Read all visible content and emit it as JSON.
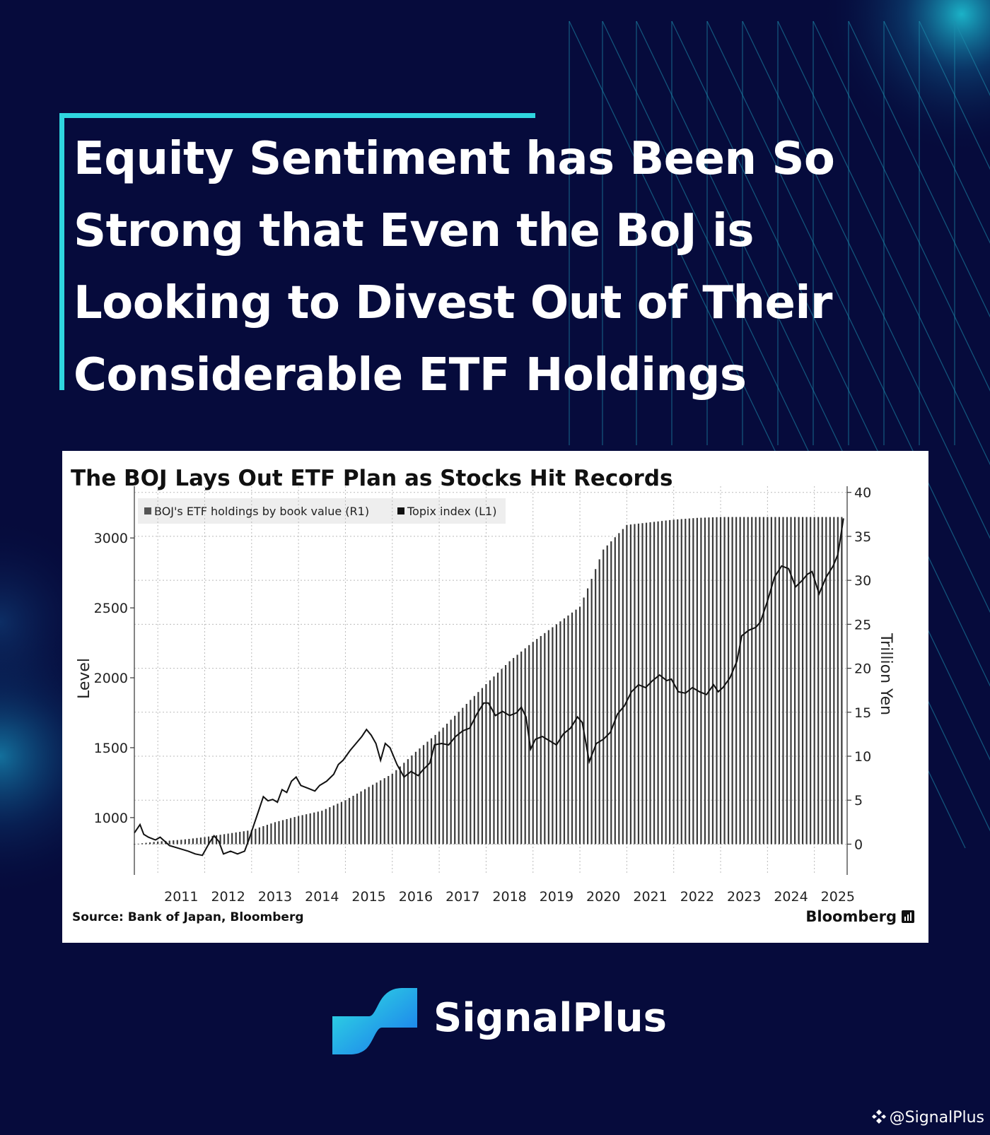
{
  "headline": "Equity Sentiment has Been So Strong that Even the BoJ is Looking to Divest Out of Their Considerable ETF Holdings",
  "brand": {
    "name": "SignalPlus",
    "logo_icon": "signalplus-wave-logo-icon"
  },
  "watermark": {
    "icon": "binance-diamond-icon",
    "text": "@SignalPlus"
  },
  "colors": {
    "background": "#060b3c",
    "accent": "#2fd6df",
    "logo_gradient_start": "#31e3e0",
    "logo_gradient_end": "#1a73ee"
  },
  "chart_data": {
    "type": "bar+line",
    "title": "The BOJ Lays Out ETF Plan as Stocks Hit Records",
    "legend": [
      {
        "label": "BOJ's ETF holdings by book value (R1)"
      },
      {
        "label": "Topix index (L1)"
      }
    ],
    "legend_position": "top-left",
    "ylabel_left": "Level",
    "ylabel_right": "Trillion Yen",
    "ylim_left": [
      590,
      3370
    ],
    "yticks_left": [
      "1000",
      "1500",
      "2000",
      "2500",
      "3000"
    ],
    "ylim_right": [
      -3.5,
      40.7
    ],
    "yticks_right": [
      "0",
      "5",
      "10",
      "15",
      "20",
      "25",
      "30",
      "35",
      "40"
    ],
    "x_tick_labels": [
      "2011",
      "2012",
      "2013",
      "2014",
      "2015",
      "2016",
      "2017",
      "2018",
      "2019",
      "2020",
      "2021",
      "2022",
      "2023",
      "2024",
      "2025"
    ],
    "xlim": [
      2010.5,
      2026.0
    ],
    "grid": true,
    "source": "Source: Bank of Japan, Bloomberg",
    "brand_mark": "Bloomberg",
    "series": [
      {
        "name": "BOJ's ETF holdings by book value (R1)",
        "kind": "bar",
        "points": [
          [
            2010.5,
            0.0
          ],
          [
            2011.0,
            0.3
          ],
          [
            2011.5,
            0.5
          ],
          [
            2012.0,
            0.8
          ],
          [
            2012.5,
            1.2
          ],
          [
            2013.0,
            1.6
          ],
          [
            2013.5,
            2.5
          ],
          [
            2014.0,
            3.2
          ],
          [
            2014.5,
            3.8
          ],
          [
            2015.0,
            5.0
          ],
          [
            2015.5,
            6.5
          ],
          [
            2016.0,
            8.0
          ],
          [
            2016.5,
            10.5
          ],
          [
            2017.0,
            12.8
          ],
          [
            2017.5,
            15.5
          ],
          [
            2018.0,
            18.2
          ],
          [
            2018.5,
            20.8
          ],
          [
            2019.0,
            23.0
          ],
          [
            2019.5,
            25.0
          ],
          [
            2020.0,
            27.0
          ],
          [
            2020.2,
            29.5
          ],
          [
            2020.5,
            33.5
          ],
          [
            2021.0,
            36.3
          ],
          [
            2021.5,
            36.6
          ],
          [
            2022.0,
            36.9
          ],
          [
            2022.5,
            37.1
          ],
          [
            2023.0,
            37.2
          ],
          [
            2025.6,
            37.2
          ]
        ]
      },
      {
        "name": "Topix index (L1)",
        "kind": "line",
        "points": [
          [
            2010.5,
            890
          ],
          [
            2010.62,
            950
          ],
          [
            2010.7,
            880
          ],
          [
            2010.8,
            860
          ],
          [
            2010.95,
            840
          ],
          [
            2011.05,
            860
          ],
          [
            2011.15,
            830
          ],
          [
            2011.25,
            800
          ],
          [
            2011.5,
            775
          ],
          [
            2011.65,
            760
          ],
          [
            2011.8,
            740
          ],
          [
            2011.95,
            730
          ],
          [
            2012.0,
            760
          ],
          [
            2012.1,
            820
          ],
          [
            2012.2,
            870
          ],
          [
            2012.3,
            830
          ],
          [
            2012.4,
            740
          ],
          [
            2012.55,
            760
          ],
          [
            2012.7,
            740
          ],
          [
            2012.85,
            760
          ],
          [
            2012.95,
            850
          ],
          [
            2013.05,
            950
          ],
          [
            2013.15,
            1050
          ],
          [
            2013.25,
            1150
          ],
          [
            2013.35,
            1120
          ],
          [
            2013.45,
            1130
          ],
          [
            2013.55,
            1110
          ],
          [
            2013.65,
            1200
          ],
          [
            2013.75,
            1180
          ],
          [
            2013.85,
            1260
          ],
          [
            2013.95,
            1290
          ],
          [
            2014.05,
            1230
          ],
          [
            2014.2,
            1210
          ],
          [
            2014.35,
            1190
          ],
          [
            2014.45,
            1230
          ],
          [
            2014.6,
            1260
          ],
          [
            2014.75,
            1310
          ],
          [
            2014.85,
            1380
          ],
          [
            2014.95,
            1410
          ],
          [
            2015.1,
            1480
          ],
          [
            2015.25,
            1540
          ],
          [
            2015.35,
            1580
          ],
          [
            2015.45,
            1630
          ],
          [
            2015.55,
            1590
          ],
          [
            2015.65,
            1530
          ],
          [
            2015.75,
            1410
          ],
          [
            2015.85,
            1530
          ],
          [
            2015.95,
            1500
          ],
          [
            2016.1,
            1380
          ],
          [
            2016.25,
            1290
          ],
          [
            2016.4,
            1330
          ],
          [
            2016.55,
            1300
          ],
          [
            2016.65,
            1340
          ],
          [
            2016.8,
            1390
          ],
          [
            2016.9,
            1520
          ],
          [
            2017.05,
            1530
          ],
          [
            2017.2,
            1520
          ],
          [
            2017.35,
            1580
          ],
          [
            2017.5,
            1620
          ],
          [
            2017.65,
            1640
          ],
          [
            2017.8,
            1740
          ],
          [
            2017.95,
            1820
          ],
          [
            2018.05,
            1820
          ],
          [
            2018.2,
            1730
          ],
          [
            2018.35,
            1760
          ],
          [
            2018.5,
            1730
          ],
          [
            2018.65,
            1750
          ],
          [
            2018.75,
            1790
          ],
          [
            2018.85,
            1720
          ],
          [
            2018.95,
            1490
          ],
          [
            2019.05,
            1560
          ],
          [
            2019.2,
            1580
          ],
          [
            2019.35,
            1550
          ],
          [
            2019.5,
            1520
          ],
          [
            2019.65,
            1600
          ],
          [
            2019.8,
            1640
          ],
          [
            2019.95,
            1720
          ],
          [
            2020.05,
            1680
          ],
          [
            2020.2,
            1400
          ],
          [
            2020.35,
            1530
          ],
          [
            2020.5,
            1560
          ],
          [
            2020.65,
            1610
          ],
          [
            2020.8,
            1740
          ],
          [
            2020.95,
            1800
          ],
          [
            2021.1,
            1900
          ],
          [
            2021.25,
            1950
          ],
          [
            2021.4,
            1930
          ],
          [
            2021.55,
            1980
          ],
          [
            2021.7,
            2020
          ],
          [
            2021.85,
            1980
          ],
          [
            2021.95,
            1990
          ],
          [
            2022.1,
            1900
          ],
          [
            2022.25,
            1890
          ],
          [
            2022.4,
            1930
          ],
          [
            2022.55,
            1900
          ],
          [
            2022.7,
            1880
          ],
          [
            2022.85,
            1950
          ],
          [
            2022.95,
            1900
          ],
          [
            2023.05,
            1930
          ],
          [
            2023.2,
            2000
          ],
          [
            2023.35,
            2120
          ],
          [
            2023.45,
            2300
          ],
          [
            2023.6,
            2340
          ],
          [
            2023.75,
            2360
          ],
          [
            2023.85,
            2400
          ],
          [
            2024.0,
            2550
          ],
          [
            2024.15,
            2720
          ],
          [
            2024.3,
            2800
          ],
          [
            2024.45,
            2780
          ],
          [
            2024.6,
            2650
          ],
          [
            2024.75,
            2700
          ],
          [
            2024.85,
            2740
          ],
          [
            2024.95,
            2760
          ],
          [
            2025.1,
            2600
          ],
          [
            2025.25,
            2720
          ],
          [
            2025.4,
            2800
          ],
          [
            2025.5,
            2880
          ],
          [
            2025.62,
            3140
          ]
        ]
      }
    ]
  }
}
